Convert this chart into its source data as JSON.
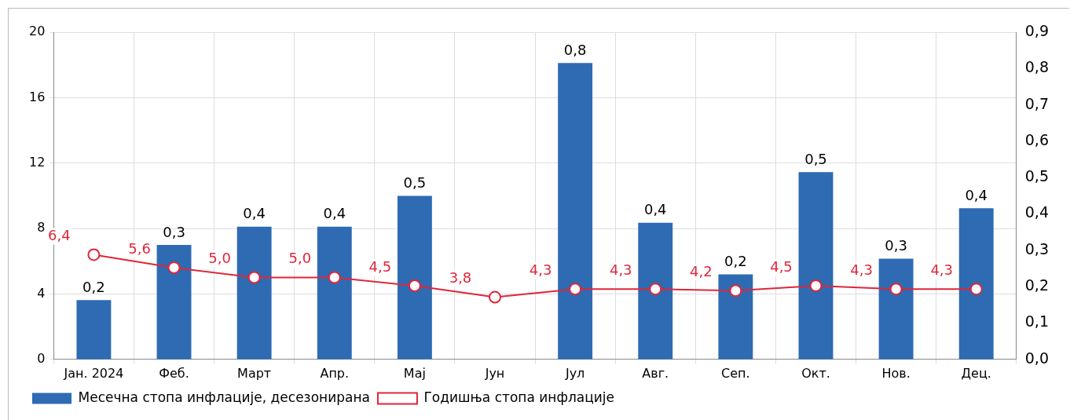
{
  "chart_data": {
    "type": "bar",
    "categories": [
      "Јан. 2024",
      "Феб.",
      "Март",
      "Апр.",
      "Мај",
      "Јун",
      "Јул",
      "Авг.",
      "Сеп.",
      "Окт.",
      "Нов.",
      "Дец."
    ],
    "series": [
      {
        "name": "Месечна стопа инфлације, десезонирана",
        "axis": "y2",
        "color": "#2e6bb3",
        "values": [
          0.163,
          0.315,
          0.365,
          0.365,
          0.45,
          null,
          0.815,
          0.376,
          0.234,
          0.515,
          0.277,
          0.416
        ],
        "value_labels": [
          "0,2",
          "0,3",
          "0,4",
          "0,4",
          "0,5",
          null,
          "0,8",
          "0,4",
          "0,2",
          "0,5",
          "0,3",
          "0,4"
        ]
      },
      {
        "name": "Годишња стопа инфлације",
        "type": "line",
        "axis": "y",
        "color": "#e0263a",
        "marker": "circle",
        "values": [
          6.4,
          5.6,
          5.0,
          5.0,
          4.5,
          3.8,
          4.3,
          4.3,
          4.2,
          4.5,
          4.3,
          4.3
        ],
        "value_labels": [
          "6,4",
          "5,6",
          "5,0",
          "5,0",
          "4,5",
          "3,8",
          "4,3",
          "4,3",
          "4,2",
          "4,5",
          "4,3",
          "4,3"
        ]
      }
    ],
    "ylim": [
      0,
      20
    ],
    "yticks": [
      0,
      4,
      8,
      12,
      16,
      20
    ],
    "y2lim": [
      0,
      0.9
    ],
    "y2ticks": [
      {
        "value": 0,
        "label": "0,0"
      },
      {
        "value": 0.1,
        "label": "0,1"
      },
      {
        "value": 0.2,
        "label": "0,2"
      },
      {
        "value": 0.3,
        "label": "0,3"
      },
      {
        "value": 0.4,
        "label": "0,4"
      },
      {
        "value": 0.5,
        "label": "0,5"
      },
      {
        "value": 0.6,
        "label": "0,6"
      },
      {
        "value": 0.7,
        "label": "0,7"
      },
      {
        "value": 0.8,
        "label": "0,8"
      },
      {
        "value": 0.9,
        "label": "0,9"
      }
    ],
    "grid": true,
    "legend": "bottom left"
  }
}
